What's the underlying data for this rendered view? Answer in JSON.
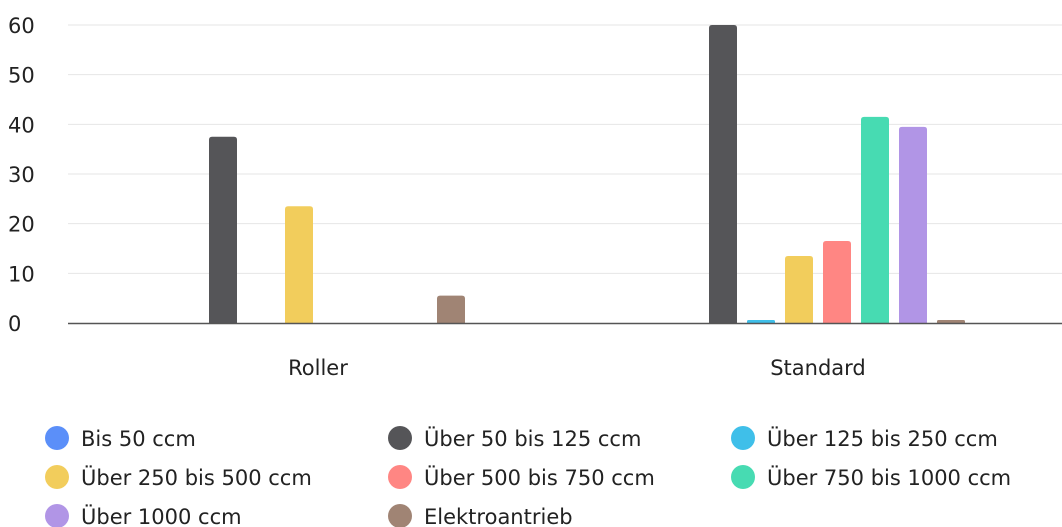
{
  "chart_data": {
    "type": "bar",
    "title": "",
    "xlabel": "",
    "ylabel": "",
    "ylim": [
      0,
      60
    ],
    "yticks": [
      0,
      10,
      20,
      30,
      40,
      50,
      60
    ],
    "grid": true,
    "legend_position": "bottom",
    "categories": [
      "Roller",
      "Standard"
    ],
    "series": [
      {
        "name": "Bis 50 ccm",
        "color": "#5b8ff9",
        "values": [
          0,
          0
        ]
      },
      {
        "name": "Über 50 bis 125 ccm",
        "color": "#555558",
        "values": [
          37.5,
          60
        ]
      },
      {
        "name": "Über 125 bis 250 ccm",
        "color": "#3fbfe9",
        "values": [
          0,
          0.6
        ]
      },
      {
        "name": "Über 250 bis 500 ccm",
        "color": "#f2cd5c",
        "values": [
          23.5,
          13.5
        ]
      },
      {
        "name": "Über 500 bis 750 ccm",
        "color": "#ff8683",
        "values": [
          0,
          16.5
        ]
      },
      {
        "name": "Über 750 bis 1000 ccm",
        "color": "#47dbb2",
        "values": [
          0,
          41.5
        ]
      },
      {
        "name": "Über 1000 ccm",
        "color": "#b195e6",
        "values": [
          0,
          39.5
        ]
      },
      {
        "name": "Elektroantrieb",
        "color": "#a08474",
        "values": [
          5.5,
          0.6
        ]
      }
    ]
  }
}
